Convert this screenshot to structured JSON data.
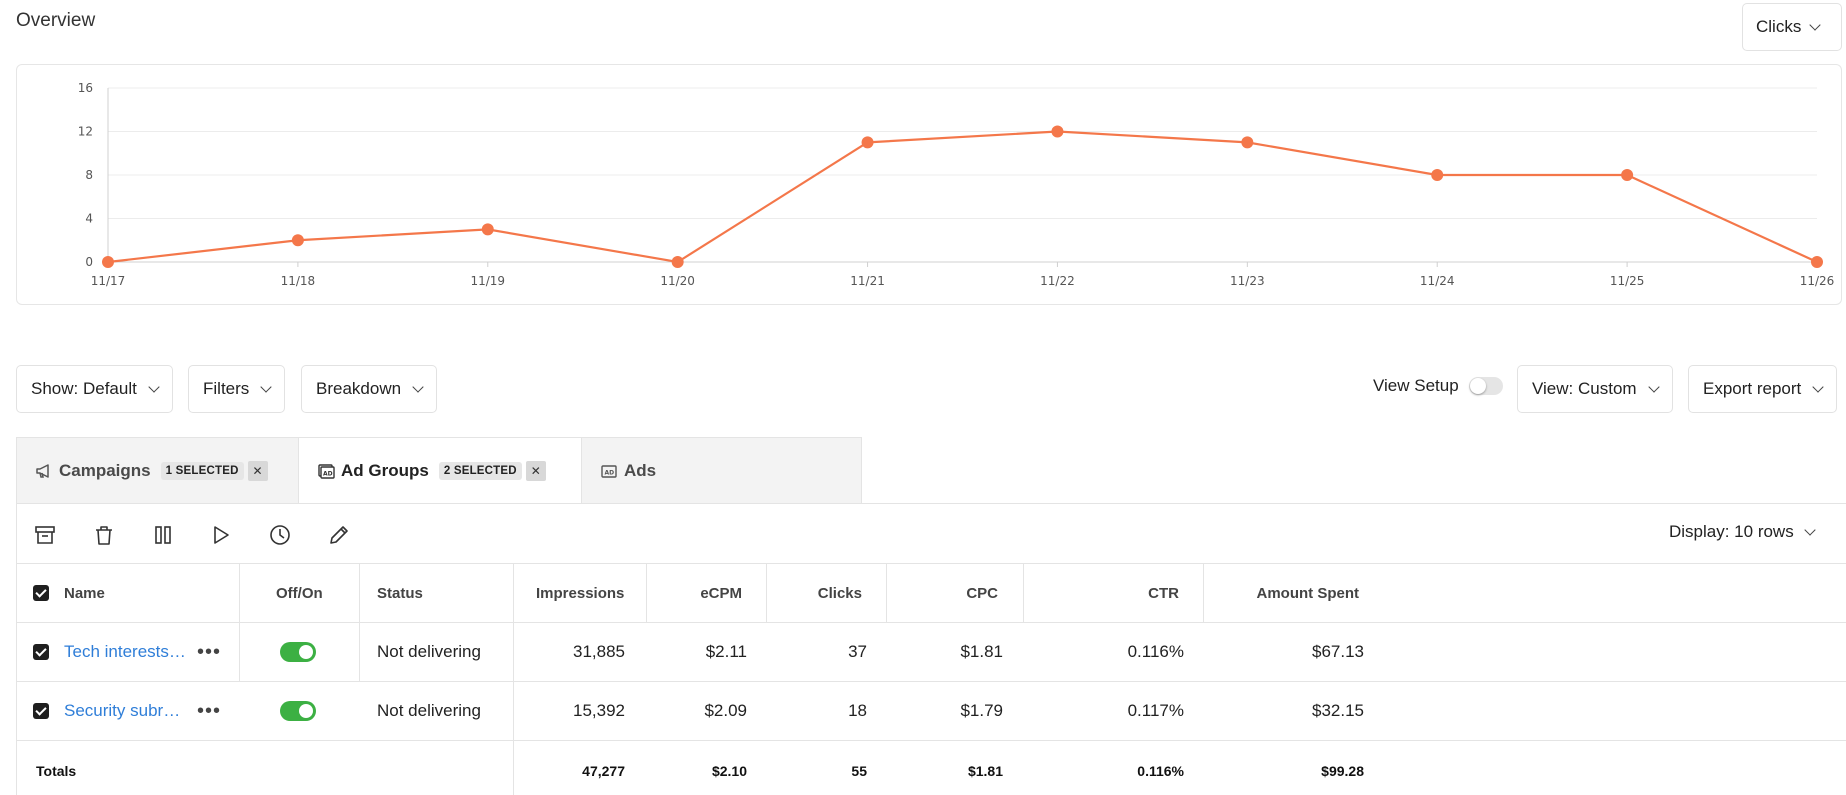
{
  "header": {
    "title": "Overview",
    "metric_select": "Clicks"
  },
  "chart_data": {
    "type": "line",
    "x": [
      "11/17",
      "11/18",
      "11/19",
      "11/20",
      "11/21",
      "11/22",
      "11/23",
      "11/24",
      "11/25",
      "11/26"
    ],
    "series": [
      {
        "values": [
          0,
          2,
          3,
          0,
          11,
          12,
          11,
          8,
          8,
          0
        ]
      }
    ],
    "yticks": [
      0,
      4,
      8,
      12,
      16
    ],
    "ylim": [
      0,
      16
    ],
    "grid": true,
    "line_color": "#f4774a"
  },
  "controls": {
    "show": "Show: Default",
    "filters": "Filters",
    "breakdown": "Breakdown",
    "view_setup": "View Setup",
    "view": "View: Custom",
    "export": "Export report"
  },
  "tabs": [
    {
      "label": "Campaigns",
      "badge": "1 SELECTED",
      "icon": "megaphone-icon"
    },
    {
      "label": "Ad Groups",
      "badge": "2 SELECTED",
      "icon": "ad-group-icon"
    },
    {
      "label": "Ads",
      "icon": "ad-icon"
    }
  ],
  "toolbar": {
    "icons": [
      "archive-icon",
      "trash-icon",
      "pause-icon",
      "play-icon",
      "clock-icon",
      "edit-icon"
    ],
    "display_rows": "Display: 10 rows"
  },
  "table": {
    "columns": {
      "name": "Name",
      "off_on": "Off/On",
      "status": "Status",
      "impressions": "Impressions",
      "ecpm": "eCPM",
      "clicks": "Clicks",
      "cpc": "CPC",
      "ctr": "CTR",
      "amount_spent": "Amount Spent"
    },
    "rows": [
      {
        "name": "Tech interests…",
        "status": "Not delivering",
        "impressions": "31,885",
        "ecpm": "$2.11",
        "clicks": "37",
        "cpc": "$1.81",
        "ctr": "0.116%",
        "amount_spent": "$67.13"
      },
      {
        "name": "Security subr…",
        "status": "Not delivering",
        "impressions": "15,392",
        "ecpm": "$2.09",
        "clicks": "18",
        "cpc": "$1.79",
        "ctr": "0.117%",
        "amount_spent": "$32.15"
      }
    ],
    "totals": {
      "label": "Totals",
      "impressions": "47,277",
      "ecpm": "$2.10",
      "clicks": "55",
      "cpc": "$1.81",
      "ctr": "0.116%",
      "amount_spent": "$99.28"
    }
  }
}
